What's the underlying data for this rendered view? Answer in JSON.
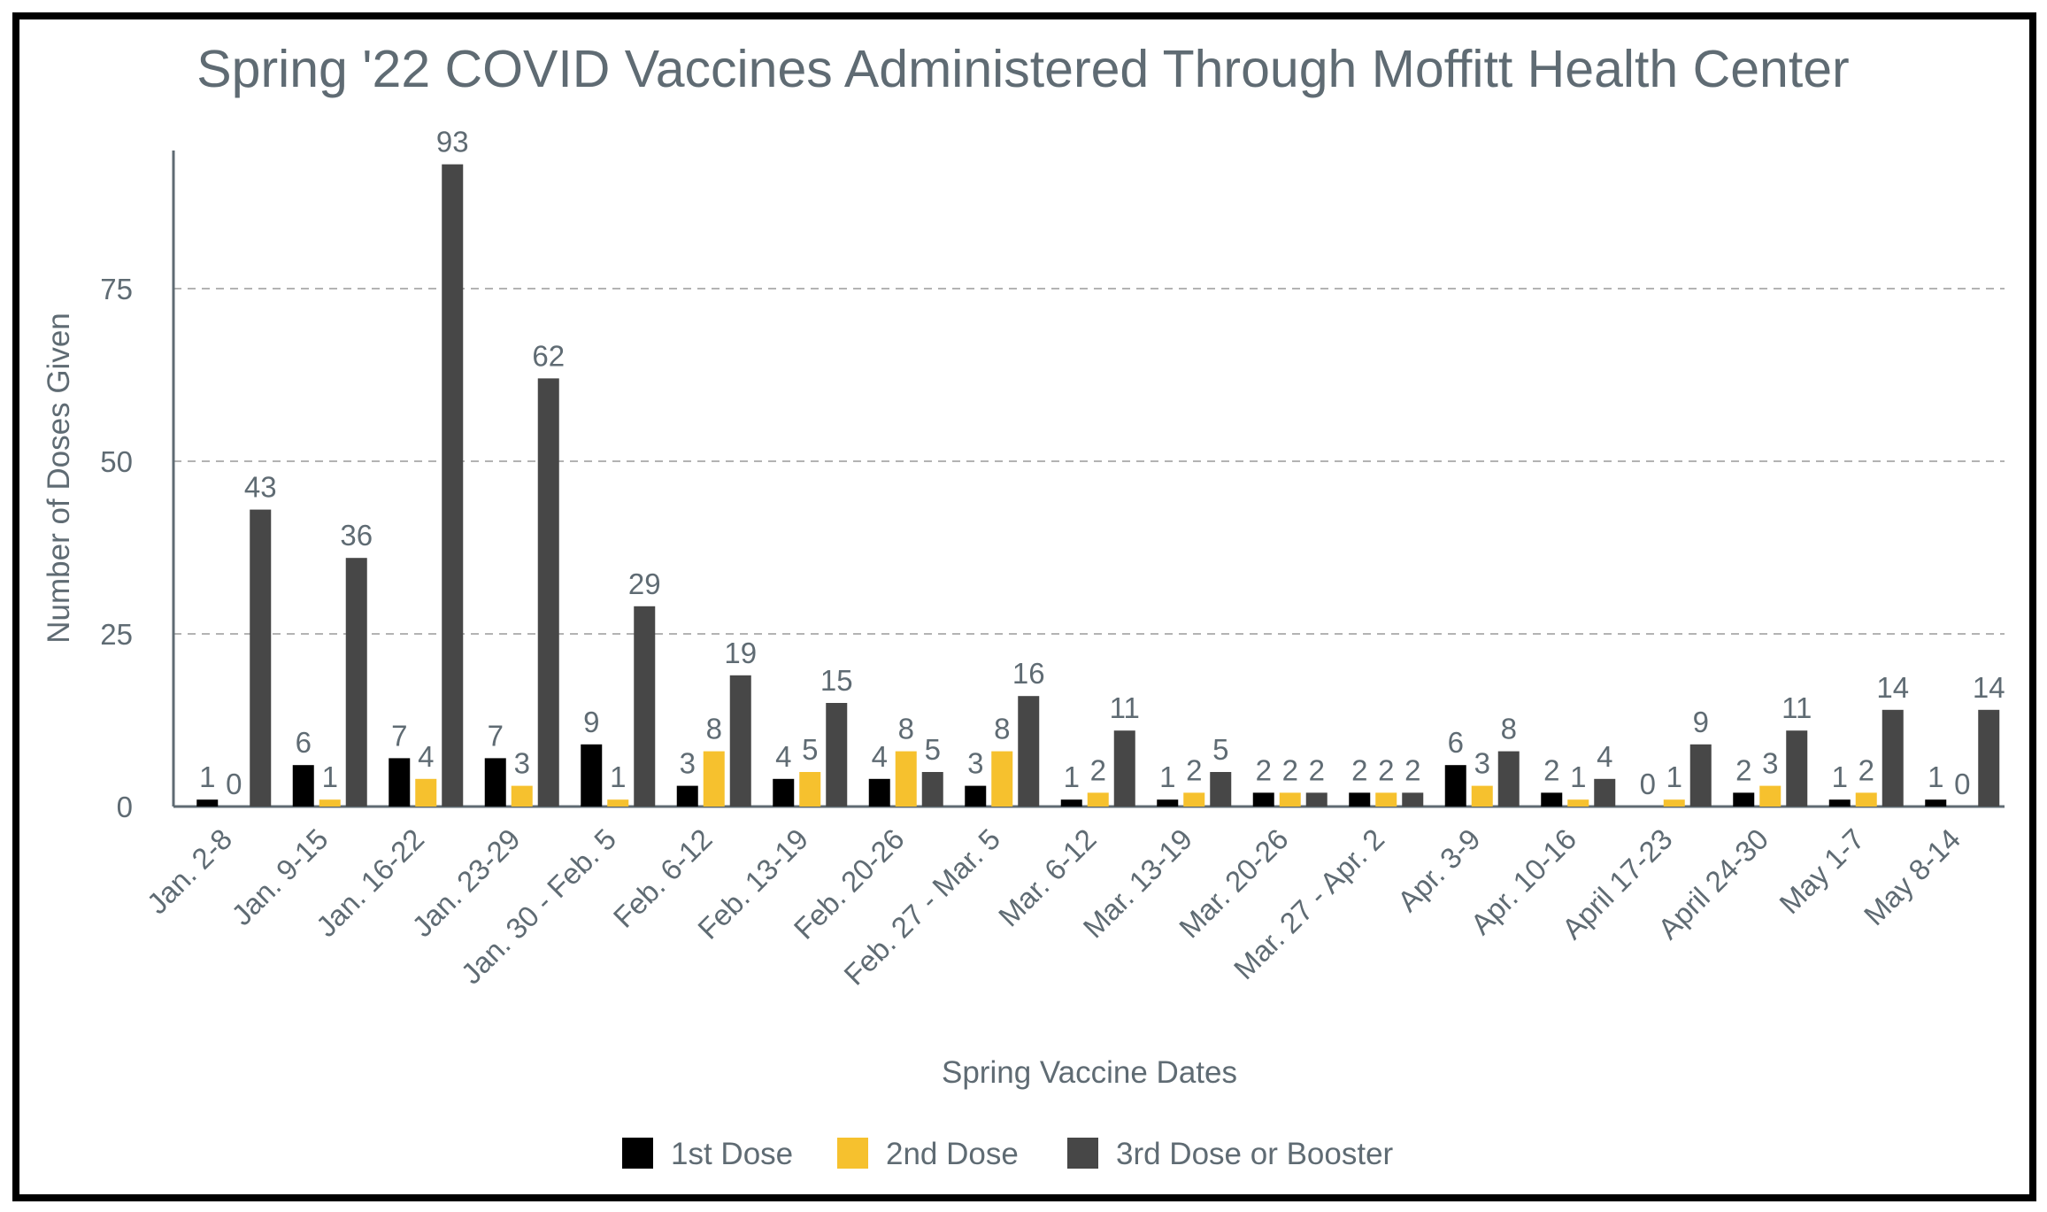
{
  "chart_data": {
    "type": "bar",
    "title": "Spring '22 COVID Vaccines Administered Through Moffitt Health Center",
    "xlabel": "Spring Vaccine Dates",
    "ylabel": "Number of Doses Given",
    "ylim": [
      0,
      95
    ],
    "yticks": [
      0,
      25,
      50,
      75
    ],
    "grid": true,
    "legend_position": "bottom",
    "categories": [
      "Jan. 2-8",
      "Jan. 9-15",
      "Jan. 16-22",
      "Jan. 23-29",
      "Jan. 30 - Feb. 5",
      "Feb. 6-12",
      "Feb. 13-19",
      "Feb. 20-26",
      "Feb. 27 - Mar. 5",
      "Mar. 6-12",
      "Mar. 13-19",
      "Mar. 20-26",
      "Mar. 27 - Apr. 2",
      "Apr. 3-9",
      "Apr. 10-16",
      "April 17-23",
      "April 24-30",
      "May 1-7",
      "May 8-14"
    ],
    "series": [
      {
        "name": "1st Dose",
        "color": "#000000",
        "values": [
          1,
          6,
          7,
          7,
          9,
          3,
          4,
          4,
          3,
          1,
          1,
          2,
          2,
          6,
          2,
          0,
          2,
          1,
          1
        ]
      },
      {
        "name": "2nd Dose",
        "color": "#f6c12e",
        "values": [
          0,
          1,
          4,
          3,
          1,
          8,
          5,
          8,
          8,
          2,
          2,
          2,
          2,
          3,
          1,
          1,
          3,
          2,
          0
        ]
      },
      {
        "name": "3rd Dose or Booster",
        "color": "#474747",
        "values": [
          43,
          36,
          93,
          62,
          29,
          19,
          15,
          5,
          16,
          11,
          5,
          2,
          2,
          8,
          4,
          9,
          11,
          14,
          14
        ]
      }
    ]
  }
}
